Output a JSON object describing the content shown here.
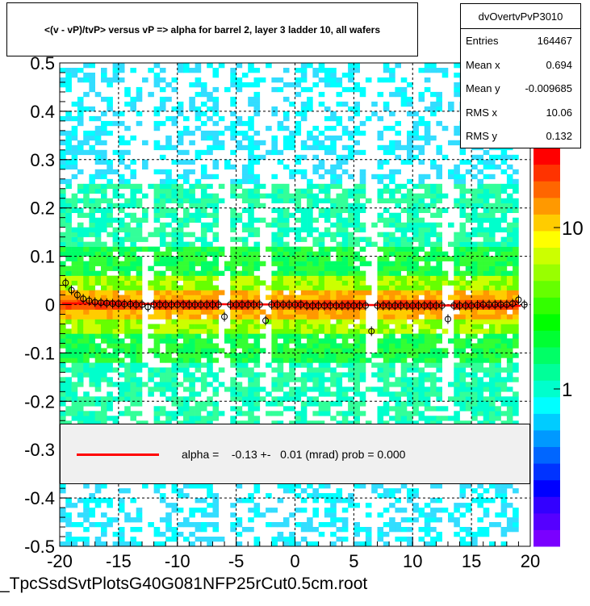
{
  "title": "<(v - vP)/tvP> versus   vP => alpha for barrel 2, layer 3 ladder 10, all wafers",
  "stats": {
    "name": "dvOvertvPvP3010",
    "rows": [
      {
        "label": "Entries",
        "value": "164467"
      },
      {
        "label": "Mean x",
        "value": "0.694"
      },
      {
        "label": "Mean y",
        "value": "-0.009685"
      },
      {
        "label": "RMS x",
        "value": "10.06"
      },
      {
        "label": "RMS y",
        "value": "0.132"
      }
    ]
  },
  "legend": {
    "text": "alpha =    -0.13 +-   0.01 (mrad) prob = 0.000",
    "line_color": "#ff0000"
  },
  "footer": "_TpcSsdSvtPlotsG40G081NFP25rCut0.5cm.root",
  "chart_data": {
    "type": "heatmap",
    "xlim": [
      -20,
      20
    ],
    "ylim": [
      -0.5,
      0.5
    ],
    "x_ticks": [
      "-20",
      "-15",
      "-10",
      "-5",
      "0",
      "5",
      "10",
      "15",
      "20"
    ],
    "y_ticks": [
      "-0.5",
      "-0.4",
      "-0.3",
      "-0.2",
      "-0.1",
      "0",
      "0.1",
      "0.2",
      "0.3",
      "0.4",
      "0.5"
    ],
    "z_scale": "log",
    "z_ticks": [
      "1",
      "10"
    ],
    "grid": true,
    "fit_line": {
      "slope": -0.00013,
      "intercept": 0.0,
      "color": "#ff0000"
    },
    "profile_points": [
      {
        "x": -19.5,
        "y": 0.045
      },
      {
        "x": -19.0,
        "y": 0.03
      },
      {
        "x": -18.5,
        "y": 0.02
      },
      {
        "x": -18.0,
        "y": 0.012
      },
      {
        "x": -17.5,
        "y": 0.008
      },
      {
        "x": -17.0,
        "y": 0.005
      },
      {
        "x": -16.5,
        "y": 0.004
      },
      {
        "x": -16.0,
        "y": 0.003
      },
      {
        "x": -15.5,
        "y": 0.002
      },
      {
        "x": -15.0,
        "y": 0.002
      },
      {
        "x": -14.5,
        "y": 0.001
      },
      {
        "x": -14.0,
        "y": 0.001
      },
      {
        "x": -13.5,
        "y": 0.0
      },
      {
        "x": -13.0,
        "y": 0.0
      },
      {
        "x": -12.5,
        "y": -0.005
      },
      {
        "x": -12.0,
        "y": 0.0
      },
      {
        "x": -11.5,
        "y": 0.0
      },
      {
        "x": -11.0,
        "y": 0.0
      },
      {
        "x": -10.5,
        "y": 0.0
      },
      {
        "x": -10.0,
        "y": 0.0
      },
      {
        "x": -9.5,
        "y": 0.0
      },
      {
        "x": -9.0,
        "y": 0.0
      },
      {
        "x": -8.5,
        "y": 0.0
      },
      {
        "x": -8.0,
        "y": 0.0
      },
      {
        "x": -7.5,
        "y": 0.0
      },
      {
        "x": -7.0,
        "y": 0.0
      },
      {
        "x": -6.5,
        "y": 0.0
      },
      {
        "x": -6.0,
        "y": -0.025
      },
      {
        "x": -5.5,
        "y": 0.0
      },
      {
        "x": -5.0,
        "y": 0.0
      },
      {
        "x": -4.5,
        "y": 0.0
      },
      {
        "x": -4.0,
        "y": 0.0
      },
      {
        "x": -3.5,
        "y": 0.0
      },
      {
        "x": -3.0,
        "y": 0.0
      },
      {
        "x": -2.5,
        "y": -0.033
      },
      {
        "x": -2.0,
        "y": 0.0
      },
      {
        "x": -1.5,
        "y": 0.0
      },
      {
        "x": -1.0,
        "y": 0.0
      },
      {
        "x": -0.5,
        "y": 0.0
      },
      {
        "x": 0.0,
        "y": 0.0
      },
      {
        "x": 0.5,
        "y": 0.0
      },
      {
        "x": 1.0,
        "y": -0.002
      },
      {
        "x": 1.5,
        "y": -0.002
      },
      {
        "x": 2.0,
        "y": -0.002
      },
      {
        "x": 2.5,
        "y": -0.002
      },
      {
        "x": 3.0,
        "y": -0.002
      },
      {
        "x": 3.5,
        "y": -0.002
      },
      {
        "x": 4.0,
        "y": -0.002
      },
      {
        "x": 4.5,
        "y": -0.002
      },
      {
        "x": 5.0,
        "y": -0.002
      },
      {
        "x": 5.5,
        "y": -0.002
      },
      {
        "x": 6.0,
        "y": -0.002
      },
      {
        "x": 6.5,
        "y": -0.055
      },
      {
        "x": 7.0,
        "y": -0.002
      },
      {
        "x": 7.5,
        "y": -0.002
      },
      {
        "x": 8.0,
        "y": -0.002
      },
      {
        "x": 8.5,
        "y": -0.002
      },
      {
        "x": 9.0,
        "y": -0.002
      },
      {
        "x": 9.5,
        "y": -0.002
      },
      {
        "x": 10.0,
        "y": -0.002
      },
      {
        "x": 10.5,
        "y": -0.002
      },
      {
        "x": 11.0,
        "y": -0.002
      },
      {
        "x": 11.5,
        "y": -0.002
      },
      {
        "x": 12.0,
        "y": -0.002
      },
      {
        "x": 12.5,
        "y": -0.002
      },
      {
        "x": 13.0,
        "y": -0.03
      },
      {
        "x": 13.5,
        "y": -0.002
      },
      {
        "x": 14.0,
        "y": -0.002
      },
      {
        "x": 14.5,
        "y": -0.002
      },
      {
        "x": 15.0,
        "y": -0.002
      },
      {
        "x": 15.5,
        "y": -0.001
      },
      {
        "x": 16.0,
        "y": 0.0
      },
      {
        "x": 16.5,
        "y": 0.0
      },
      {
        "x": 17.0,
        "y": 0.0
      },
      {
        "x": 17.5,
        "y": 0.0
      },
      {
        "x": 18.0,
        "y": 0.0
      },
      {
        "x": 18.5,
        "y": 0.002
      },
      {
        "x": 19.0,
        "y": 0.01
      },
      {
        "x": 19.5,
        "y": 0.0
      }
    ]
  }
}
